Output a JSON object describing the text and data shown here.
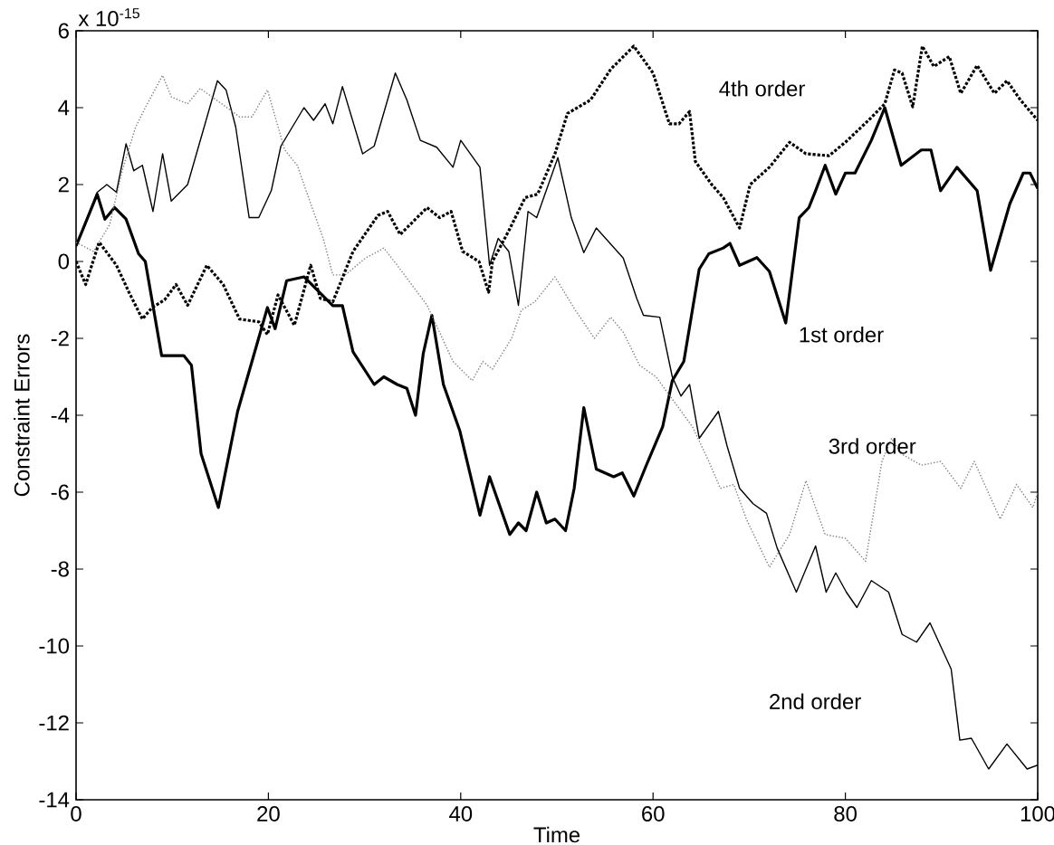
{
  "chart_data": {
    "type": "line",
    "xlabel": "Time",
    "ylabel": "Constraint Errors",
    "xlim": [
      0,
      100
    ],
    "ylim": [
      -14,
      6
    ],
    "xticks": [
      0,
      20,
      40,
      60,
      80,
      100
    ],
    "yticks": [
      -14,
      -12,
      -10,
      -8,
      -6,
      -4,
      -2,
      0,
      2,
      4,
      6
    ],
    "marker": "none",
    "annotations": [
      "x 10$^{-15}$",
      "4th order",
      "1st order",
      "3rd order",
      "2nd order"
    ],
    "series": [
      {
        "color": "#000000",
        "line_style": "solid",
        "x": [
          0,
          2.2,
          3,
          4,
          5.2,
          6.5,
          7.2,
          8.9,
          11.2,
          12,
          13,
          14.8,
          16.8,
          19.9,
          20.7,
          21.9,
          23.7,
          26.7,
          27.7,
          28.8,
          31,
          32,
          33.4,
          34.4,
          35.3,
          36.1,
          37,
          38.2,
          39.9,
          42,
          43,
          45.1,
          46,
          46.8,
          47.9,
          48.9,
          49.8,
          50.9,
          51.8,
          52.8,
          54.1,
          55.9,
          56.8,
          58,
          59.3,
          61,
          62,
          63.2,
          64.8,
          65.8,
          67.3,
          68,
          69,
          70.8,
          72.1,
          73.8,
          75.2,
          76.2,
          76.9,
          77.9,
          79,
          80,
          81,
          82.7,
          84.1,
          85.8,
          87.9,
          88.9,
          89.9,
          91.6,
          93.7,
          95.1,
          97.1,
          98.5,
          99.2,
          100
        ],
        "values": [
          0.4,
          1.75,
          1.1,
          1.4,
          1.1,
          0.2,
          0,
          -2.45,
          -2.45,
          -2.7,
          -5,
          -6.4,
          -3.9,
          -1.2,
          -1.75,
          -0.5,
          -0.4,
          -1.15,
          -1.15,
          -2.35,
          -3.2,
          -3,
          -3.2,
          -3.3,
          -4,
          -2.4,
          -1.4,
          -3.2,
          -4.4,
          -6.6,
          -5.6,
          -7.1,
          -6.8,
          -7,
          -6,
          -6.8,
          -6.7,
          -7,
          -5.9,
          -3.8,
          -5.4,
          -5.6,
          -5.5,
          -6.1,
          -5.3,
          -4.3,
          -3.1,
          -2.6,
          -0.2,
          0.2,
          0.35,
          0.47,
          -0.1,
          0.1,
          -0.26,
          -1.6,
          1.14,
          1.4,
          1.84,
          2.5,
          1.75,
          2.3,
          2.3,
          3.15,
          4,
          2.5,
          2.9,
          2.9,
          1.84,
          2.45,
          1.84,
          -0.23,
          1.5,
          2.3,
          2.3,
          1.9
        ]
      },
      {
        "color": "#000000",
        "line_style": "solid",
        "x": [
          0,
          2.2,
          3.2,
          4.2,
          5.2,
          6,
          6.9,
          8,
          9,
          9.9,
          11.6,
          14.7,
          15.6,
          16.6,
          18,
          19,
          20.3,
          21.3,
          23.7,
          24.7,
          25.9,
          26.7,
          27.7,
          29.8,
          31,
          33.2,
          34.4,
          35.8,
          37.5,
          39.2,
          40,
          42,
          43,
          43.9,
          45,
          46,
          47,
          47.9,
          50.1,
          51.5,
          52.8,
          54.1,
          56.9,
          58.3,
          59,
          60.7,
          62,
          62.9,
          63.8,
          64.8,
          66.8,
          67.7,
          69,
          70.4,
          71.8,
          72.9,
          74.9,
          76.9,
          78,
          79,
          80.1,
          81.2,
          82.7,
          84.5,
          85.9,
          87.4,
          88.8,
          91,
          91.9,
          93.1,
          94.9,
          96.8,
          98.9,
          100
        ],
        "values": [
          0.4,
          1.8,
          2,
          1.8,
          3.06,
          2.36,
          2.5,
          1.3,
          2.8,
          1.57,
          2,
          4.7,
          4.46,
          3.5,
          1.14,
          1.14,
          1.84,
          3,
          4,
          3.67,
          4.1,
          3.58,
          4.55,
          2.8,
          3,
          4.9,
          4.2,
          3.15,
          2.97,
          2.45,
          3.15,
          2.45,
          -0.1,
          0.6,
          0.26,
          -1.14,
          1.3,
          1.14,
          2.7,
          1.14,
          0.23,
          0.87,
          0.09,
          -0.96,
          -1.4,
          -1.45,
          -3,
          -3.5,
          -3.2,
          -4.6,
          -3.9,
          -4.8,
          -5.9,
          -6.3,
          -6.55,
          -7.45,
          -8.6,
          -7.4,
          -8.6,
          -8.1,
          -8.6,
          -9,
          -8.3,
          -8.6,
          -9.7,
          -9.9,
          -9.4,
          -10.6,
          -12.45,
          -12.4,
          -13.2,
          -12.55,
          -13.2,
          -13.1
        ]
      },
      {
        "color": "#808080",
        "line_style": "dotted",
        "x": [
          0,
          1.8,
          3.5,
          4.8,
          6.2,
          7.2,
          9,
          9.9,
          11.6,
          12.9,
          14.6,
          17,
          18.3,
          19.9,
          21.7,
          23,
          24.4,
          25.7,
          26.7,
          28,
          30.1,
          31.4,
          32,
          33.4,
          36.5,
          39.2,
          41.2,
          42.3,
          43.3,
          45.3,
          46.3,
          47.7,
          49.8,
          51.8,
          53.9,
          55.6,
          56.9,
          58.6,
          60.3,
          64.1,
          65.8,
          67,
          68.4,
          69.7,
          72.1,
          74.2,
          75.9,
          77.9,
          80,
          82.1,
          83.8,
          84.8,
          85.8,
          87.9,
          89.9,
          92,
          93.4,
          96.1,
          97.8,
          99.5,
          100
        ],
        "values": [
          0.5,
          0.26,
          0.96,
          2.36,
          3.5,
          4,
          4.84,
          4.28,
          4.1,
          4.5,
          4.2,
          3.76,
          3.76,
          4.46,
          2.9,
          2.5,
          1.5,
          0.6,
          -0.35,
          -0.35,
          0.09,
          0.26,
          0.35,
          -0.1,
          -1.14,
          -2.6,
          -3.1,
          -2.6,
          -2.8,
          -2,
          -1.27,
          -1.05,
          -0.4,
          -1.22,
          -2,
          -1.45,
          -1.84,
          -2.7,
          -3,
          -4.3,
          -5.2,
          -5.9,
          -5.8,
          -6.7,
          -7.95,
          -7.1,
          -5.7,
          -7.1,
          -7.2,
          -7.8,
          -5.2,
          -4.6,
          -5,
          -5.3,
          -5.2,
          -5.9,
          -5.2,
          -6.7,
          -5.8,
          -6.4,
          -6
        ]
      },
      {
        "color": "#000000",
        "line_style": "dotted",
        "x": [
          0,
          1,
          2.4,
          4.2,
          5.5,
          6.9,
          7.9,
          9.2,
          10.4,
          11.6,
          13.6,
          15.3,
          17,
          19,
          19.9,
          21,
          22.7,
          24.4,
          25.4,
          26.7,
          28.8,
          31.4,
          32.4,
          33.7,
          36.5,
          37.8,
          39,
          40.2,
          41.9,
          42.9,
          43.3,
          45,
          46.7,
          48,
          49.8,
          51.1,
          53.5,
          55.6,
          58,
          60,
          61.7,
          62.7,
          63.8,
          64.4,
          66.1,
          67.3,
          69,
          70.1,
          72.1,
          74.2,
          75.9,
          78.3,
          80,
          82.4,
          84.1,
          85.1,
          85.9,
          87,
          88,
          89.2,
          90.8,
          92,
          93.7,
          95.5,
          96.8,
          98.2,
          100
        ],
        "values": [
          0,
          -0.6,
          0.5,
          -0.1,
          -0.8,
          -1.5,
          -1.2,
          -1,
          -0.6,
          -1.14,
          -0.1,
          -0.6,
          -1.5,
          -1.57,
          -1.9,
          -0.87,
          -1.66,
          -0.1,
          -0.96,
          -1.05,
          0.26,
          1.2,
          1.3,
          0.7,
          1.4,
          1.14,
          1.3,
          0.26,
          0,
          -0.8,
          0,
          0.8,
          1.66,
          1.75,
          2.8,
          3.85,
          4.2,
          5,
          5.6,
          4.9,
          3.58,
          3.58,
          3.9,
          2.6,
          2,
          1.66,
          0.87,
          2,
          2.45,
          3.1,
          2.8,
          2.75,
          3.1,
          3.67,
          4.1,
          4.98,
          4.9,
          4.02,
          5.6,
          5.07,
          5.33,
          4.37,
          5.1,
          4.37,
          4.7,
          4.2,
          3.67
        ]
      }
    ]
  }
}
